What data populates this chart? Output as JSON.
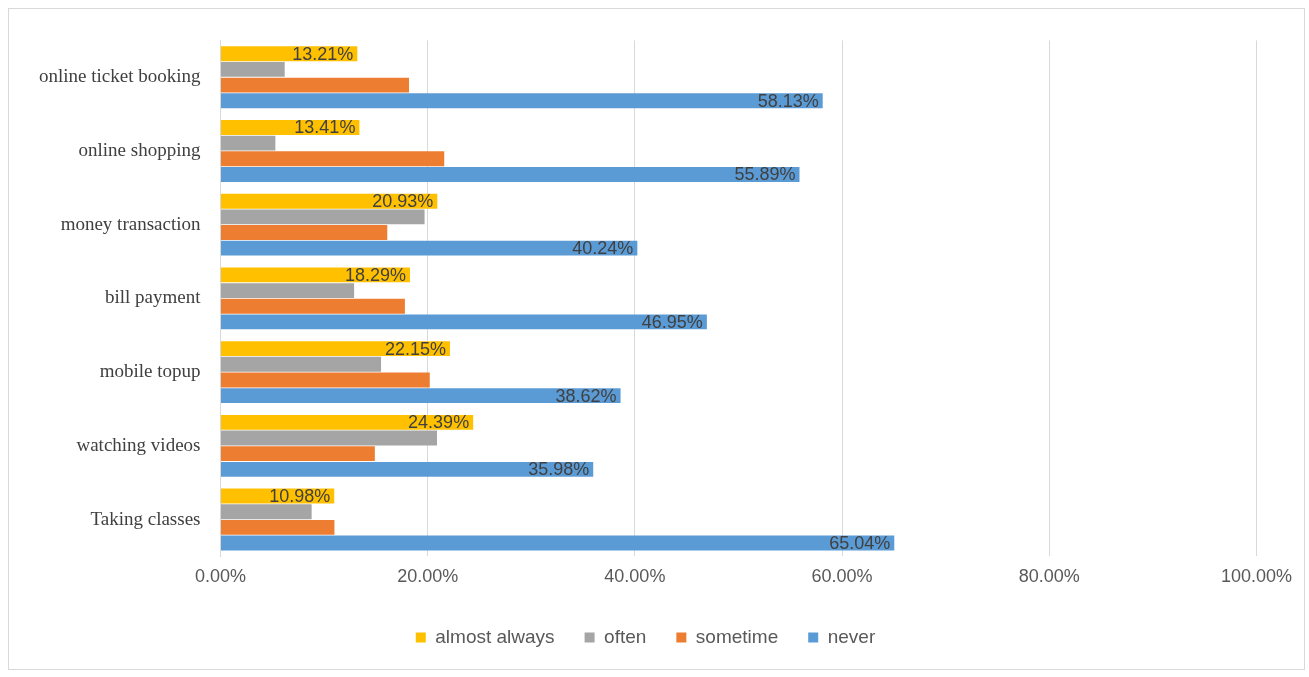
{
  "chart_data": {
    "type": "bar",
    "orientation": "horizontal",
    "categories": [
      "online ticket booking",
      "online shopping",
      "money transaction",
      "bill payment",
      "mobile topup",
      "watching videos",
      "Taking classes"
    ],
    "series": [
      {
        "name": "almost always",
        "color": "#ffc000",
        "values": [
          13.21,
          13.41,
          20.93,
          18.29,
          22.15,
          24.39,
          10.98
        ],
        "value_labels": [
          "13.21%",
          "13.41%",
          "20.93%",
          "18.29%",
          "22.15%",
          "24.39%",
          "10.98%"
        ]
      },
      {
        "name": "often",
        "color": "#a5a5a5",
        "values": [
          6.2,
          5.3,
          19.7,
          12.9,
          15.5,
          20.9,
          8.8
        ]
      },
      {
        "name": "sometime",
        "color": "#ed7d31",
        "values": [
          18.2,
          21.6,
          16.1,
          17.8,
          20.2,
          14.9,
          11.0
        ]
      },
      {
        "name": "never",
        "color": "#5b9bd5",
        "values": [
          58.13,
          55.89,
          40.24,
          46.95,
          38.62,
          35.98,
          65.04
        ],
        "value_labels": [
          "58.13%",
          "55.89%",
          "40.24%",
          "46.95%",
          "38.62%",
          "35.98%",
          "65.04%"
        ]
      }
    ],
    "xlim": [
      0,
      100
    ],
    "xticks": [
      {
        "value": 0,
        "label": "0.00%"
      },
      {
        "value": 20,
        "label": "20.00%"
      },
      {
        "value": 40,
        "label": "40.00%"
      },
      {
        "value": 60,
        "label": "60.00%"
      },
      {
        "value": 80,
        "label": "80.00%"
      },
      {
        "value": 100,
        "label": "100.00%"
      }
    ],
    "grid": "x",
    "legend": "bottom"
  }
}
